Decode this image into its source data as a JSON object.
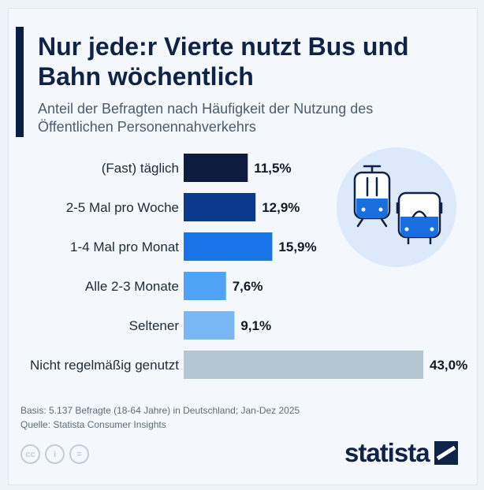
{
  "header": {
    "title": "Nur jede:r Vierte nutzt Bus und Bahn wöchentlich",
    "subtitle": "Anteil der Befragten nach Häufigkeit der Nutzung des Öffentlichen Personennahverkehrs"
  },
  "chart_data": {
    "type": "bar",
    "orientation": "horizontal",
    "categories": [
      "(Fast) täglich",
      "2-5 Mal pro Woche",
      "1-4 Mal pro Monat",
      "Alle 2-3 Monate",
      "Seltener",
      "Nicht regelmäßig genutzt"
    ],
    "values": [
      11.5,
      12.9,
      15.9,
      7.6,
      9.1,
      43.0
    ],
    "value_labels": [
      "11,5%",
      "12,9%",
      "15,9%",
      "7,6%",
      "9,1%",
      "43,0%"
    ],
    "colors": [
      "#0d1b3e",
      "#0b3a8c",
      "#1a73e8",
      "#4fa3f7",
      "#79b8f5",
      "#b3c7d2"
    ],
    "unit": "%",
    "grid": false,
    "legend": "none"
  },
  "illustration": {
    "icons": [
      "tram-icon",
      "bus-icon"
    ],
    "circle_color": "#dce9f8",
    "accent": "#1a6fe0"
  },
  "footer": {
    "basis": "Basis: 5.137 Befragte (18-64 Jahre) in Deutschland; Jan-Dez 2025",
    "source": "Quelle: Statista Consumer Insights"
  },
  "license_icons": [
    "cc",
    "i",
    "="
  ],
  "brand": {
    "name": "statista"
  }
}
